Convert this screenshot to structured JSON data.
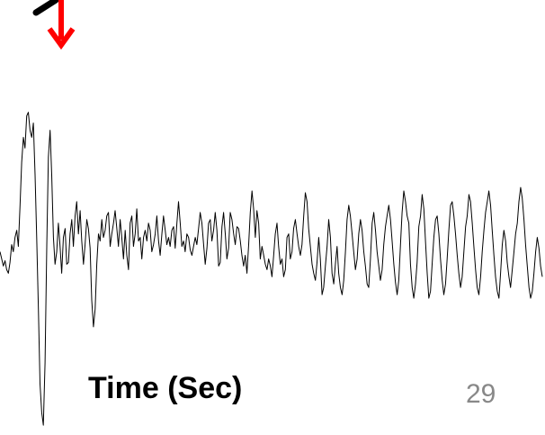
{
  "chart_data": {
    "type": "line",
    "xlabel": "Time (Sec)",
    "ylabel": "",
    "title": "",
    "grid": false,
    "legend": "none",
    "ylim": [
      -1.0,
      1.0
    ],
    "series": [
      {
        "color": "#000000",
        "values": [
          0.02,
          -0.02,
          -0.06,
          -0.03,
          -0.08,
          -0.1,
          -0.04,
          0.06,
          0.02,
          0.1,
          0.14,
          0.05,
          0.28,
          0.52,
          0.66,
          0.6,
          0.78,
          0.8,
          0.7,
          0.66,
          0.74,
          0.45,
          0.1,
          -0.3,
          -0.72,
          -0.88,
          -0.95,
          -0.6,
          0.05,
          0.55,
          0.7,
          0.45,
          0.1,
          -0.05,
          0.02,
          0.18,
          0.05,
          -0.1,
          0.1,
          0.15,
          -0.05,
          -0.04,
          0.12,
          0.2,
          0.05,
          0.22,
          0.3,
          0.12,
          0.25,
          0.08,
          -0.05,
          0.06,
          0.2,
          0.15,
          0.04,
          -0.25,
          -0.4,
          -0.3,
          -0.05,
          0.12,
          0.08,
          0.2,
          0.1,
          0.14,
          0.22,
          0.24,
          0.05,
          0.12,
          0.18,
          0.25,
          0.15,
          0.05,
          0.2,
          0.1,
          -0.02,
          0.14,
          0.0,
          -0.08,
          0.18,
          0.22,
          0.05,
          0.12,
          0.26,
          0.08,
          0.1,
          -0.02,
          0.1,
          0.14,
          0.08,
          0.18,
          0.14,
          0.02,
          0.06,
          0.12,
          0.22,
          0.08,
          0.0,
          0.12,
          0.22,
          0.14,
          0.06,
          0.1,
          0.05,
          0.14,
          0.16,
          0.04,
          0.18,
          0.3,
          0.18,
          0.05,
          0.08,
          0.02,
          0.12,
          0.1,
          0.03,
          0.0,
          0.05,
          0.1,
          0.06,
          0.15,
          0.24,
          0.18,
          0.06,
          -0.05,
          0.04,
          0.18,
          0.2,
          0.08,
          0.14,
          0.24,
          0.14,
          -0.06,
          -0.04,
          0.16,
          0.24,
          0.12,
          -0.02,
          0.04,
          0.24,
          0.2,
          0.12,
          0.06,
          0.16,
          0.15,
          0.08,
          0.0,
          -0.06,
          0.0,
          -0.1,
          0.06,
          0.24,
          0.36,
          0.26,
          0.1,
          0.25,
          0.18,
          -0.02,
          0.05,
          0.0,
          -0.05,
          -0.08,
          -0.02,
          -0.06,
          -0.12,
          0.0,
          0.12,
          0.18,
          0.05,
          -0.05,
          -0.02,
          -0.12,
          -0.08,
          0.1,
          0.12,
          -0.02,
          0.02,
          0.15,
          0.2,
          0.12,
          0.05,
          0.0,
          0.06,
          0.22,
          0.35,
          0.3,
          0.15,
          0.05,
          -0.05,
          -0.1,
          -0.14,
          -0.04,
          0.1,
          -0.02,
          -0.22,
          -0.18,
          -0.06,
          0.05,
          0.2,
          0.1,
          -0.1,
          -0.16,
          -0.05,
          0.05,
          -0.1,
          -0.18,
          -0.22,
          -0.14,
          0.02,
          0.2,
          0.28,
          0.22,
          0.12,
          0.02,
          -0.08,
          -0.02,
          0.12,
          0.2,
          0.14,
          0.02,
          -0.06,
          -0.16,
          -0.18,
          -0.02,
          0.18,
          0.24,
          0.14,
          0.02,
          -0.06,
          -0.14,
          -0.08,
          0.06,
          0.16,
          0.22,
          0.28,
          0.2,
          0.08,
          -0.05,
          -0.15,
          -0.22,
          -0.14,
          0.06,
          0.24,
          0.36,
          0.3,
          0.22,
          0.18,
          -0.05,
          -0.18,
          -0.24,
          -0.16,
          -0.04,
          0.16,
          0.22,
          0.34,
          0.26,
          0.08,
          -0.1,
          -0.24,
          -0.2,
          -0.05,
          0.1,
          0.2,
          0.22,
          0.12,
          -0.02,
          -0.14,
          -0.22,
          -0.16,
          -0.02,
          0.14,
          0.28,
          0.3,
          0.22,
          0.12,
          0.0,
          -0.1,
          -0.18,
          -0.12,
          0.02,
          0.16,
          0.22,
          0.34,
          0.3,
          0.18,
          0.05,
          -0.08,
          -0.18,
          -0.22,
          -0.12,
          0.02,
          0.14,
          0.24,
          0.3,
          0.36,
          0.28,
          0.14,
          0.0,
          -0.12,
          -0.2,
          -0.24,
          -0.1,
          0.06,
          0.14,
          0.08,
          -0.04,
          -0.12,
          -0.18,
          -0.08,
          0.02,
          0.12,
          0.18,
          0.3,
          0.38,
          0.32,
          0.2,
          0.06,
          -0.06,
          -0.18,
          -0.24,
          -0.2,
          -0.1,
          0.02,
          0.1,
          0.04,
          -0.06,
          -0.12
        ]
      }
    ]
  },
  "annotation": {
    "arrow_color": "#ff0000",
    "line_color": "#000000"
  },
  "footer": {
    "page_number": "29"
  }
}
